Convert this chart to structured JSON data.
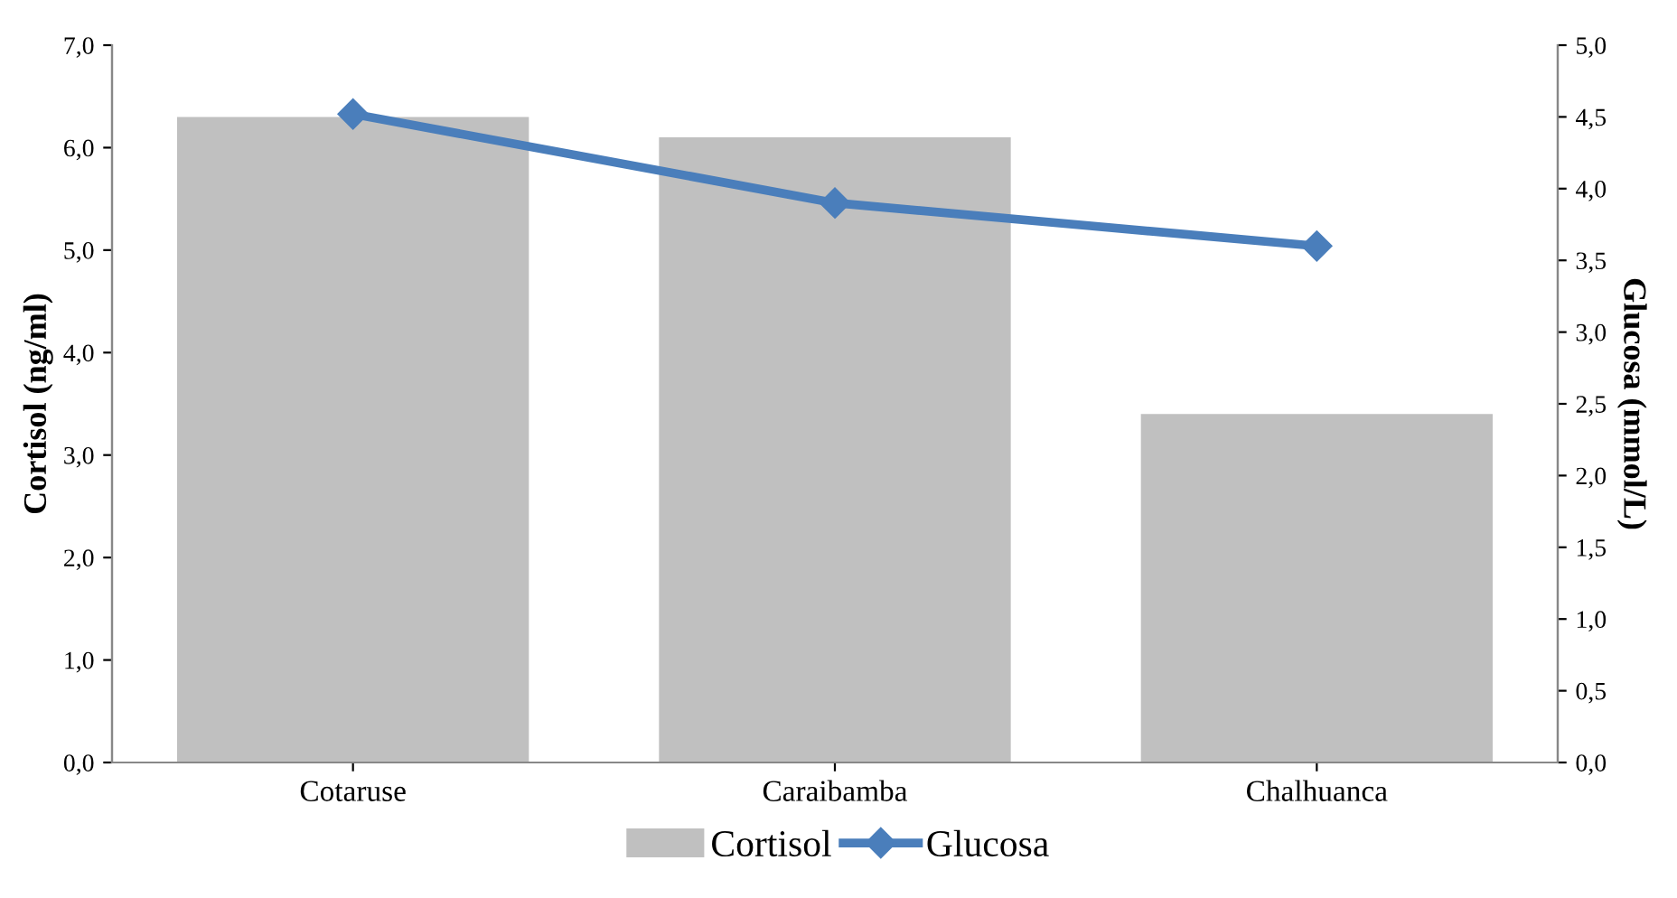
{
  "chart_data": {
    "type": "bar",
    "categories": [
      "Cotaruse",
      "Caraibamba",
      "Chalhuanca"
    ],
    "ylabel": "Cortisol (ng/ml)",
    "y2label": "Glucosa (mmol/L)",
    "series": [
      {
        "name": "Cortisol",
        "color": "#c0c0c0",
        "values": [
          6.3,
          6.1,
          3.4
        ]
      },
      {
        "name": "Glucosa",
        "type": "line",
        "axis": "y2",
        "color": "#4a7ebb",
        "marker": "diamond",
        "line_style": "solid",
        "values": [
          4.52,
          3.9,
          3.6
        ]
      }
    ],
    "ylim": [
      0,
      7
    ],
    "yticks": [
      {
        "value": 0,
        "label": "0,0"
      },
      {
        "value": 1,
        "label": "1,0"
      },
      {
        "value": 2,
        "label": "2,0"
      },
      {
        "value": 3,
        "label": "3,0"
      },
      {
        "value": 4,
        "label": "4,0"
      },
      {
        "value": 5,
        "label": "5,0"
      },
      {
        "value": 6,
        "label": "6,0"
      },
      {
        "value": 7,
        "label": "7,0"
      }
    ],
    "y2lim": [
      0,
      5
    ],
    "y2ticks": [
      {
        "value": 0,
        "label": "0,0"
      },
      {
        "value": 0.5,
        "label": "0,5"
      },
      {
        "value": 1,
        "label": "1,0"
      },
      {
        "value": 1.5,
        "label": "1,5"
      },
      {
        "value": 2,
        "label": "2,0"
      },
      {
        "value": 2.5,
        "label": "2,5"
      },
      {
        "value": 3,
        "label": "3,0"
      },
      {
        "value": 3.5,
        "label": "3,5"
      },
      {
        "value": 4,
        "label": "4,0"
      },
      {
        "value": 4.5,
        "label": "4,5"
      },
      {
        "value": 5,
        "label": "5,0"
      }
    ],
    "grid": false,
    "legend": "bottom"
  }
}
